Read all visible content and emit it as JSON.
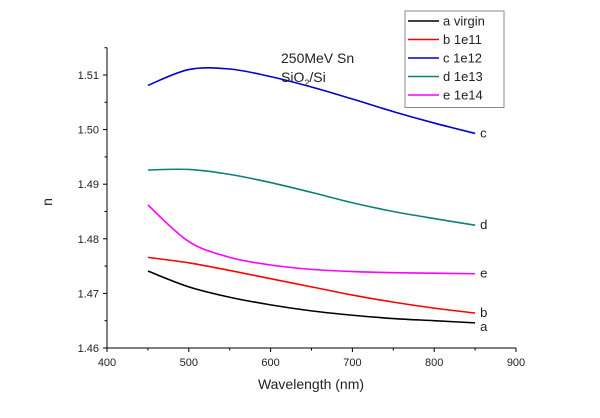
{
  "chart_data": {
    "type": "line",
    "title": "",
    "xlabel": "Wavelength (nm)",
    "ylabel": "n",
    "xlim": [
      400,
      900
    ],
    "ylim": [
      1.46,
      1.515
    ],
    "xticks": [
      400,
      500,
      600,
      700,
      800,
      900
    ],
    "xtick_labels": [
      "400",
      "500",
      "600",
      "700",
      "800",
      "900"
    ],
    "yticks": [
      1.46,
      1.47,
      1.48,
      1.49,
      1.5,
      1.51
    ],
    "ytick_labels": [
      "1.46",
      "1.47",
      "1.48",
      "1.49",
      "1.50",
      "1.51"
    ],
    "grid": false,
    "legend_position": "top-right",
    "annotation": {
      "line1": "250MeV Sn",
      "line2_main": "SiO",
      "line2_sub": "2",
      "line2_rest": "/Si"
    },
    "x": [
      450,
      500,
      550,
      600,
      650,
      700,
      750,
      800,
      850
    ],
    "series": [
      {
        "key": "a",
        "name": "a virgin",
        "end_label": "a",
        "color": "#000000",
        "values": [
          1.4741,
          1.4712,
          1.4693,
          1.4679,
          1.4668,
          1.466,
          1.4654,
          1.465,
          1.4646
        ]
      },
      {
        "key": "b",
        "name": "b 1e11",
        "color": "#ff0000",
        "end_label": "b",
        "values": [
          1.4766,
          1.4756,
          1.4742,
          1.4727,
          1.4712,
          1.4697,
          1.4684,
          1.4673,
          1.4664
        ]
      },
      {
        "key": "c",
        "name": "c 1e12",
        "color": "#0000cc",
        "end_label": "c",
        "values": [
          1.5081,
          1.511,
          1.5111,
          1.5097,
          1.5078,
          1.5056,
          1.5033,
          1.5012,
          1.4993
        ]
      },
      {
        "key": "d",
        "name": "d 1e13",
        "color": "#0f7f7a",
        "end_label": "d",
        "values": [
          1.4926,
          1.4927,
          1.4918,
          1.4903,
          1.4885,
          1.4866,
          1.485,
          1.4837,
          1.4825
        ]
      },
      {
        "key": "e",
        "name": "e 1e14",
        "color": "#ff00ff",
        "end_label": "e",
        "values": [
          1.4862,
          1.4795,
          1.4766,
          1.4752,
          1.4744,
          1.474,
          1.4738,
          1.4737,
          1.4736
        ]
      }
    ]
  }
}
